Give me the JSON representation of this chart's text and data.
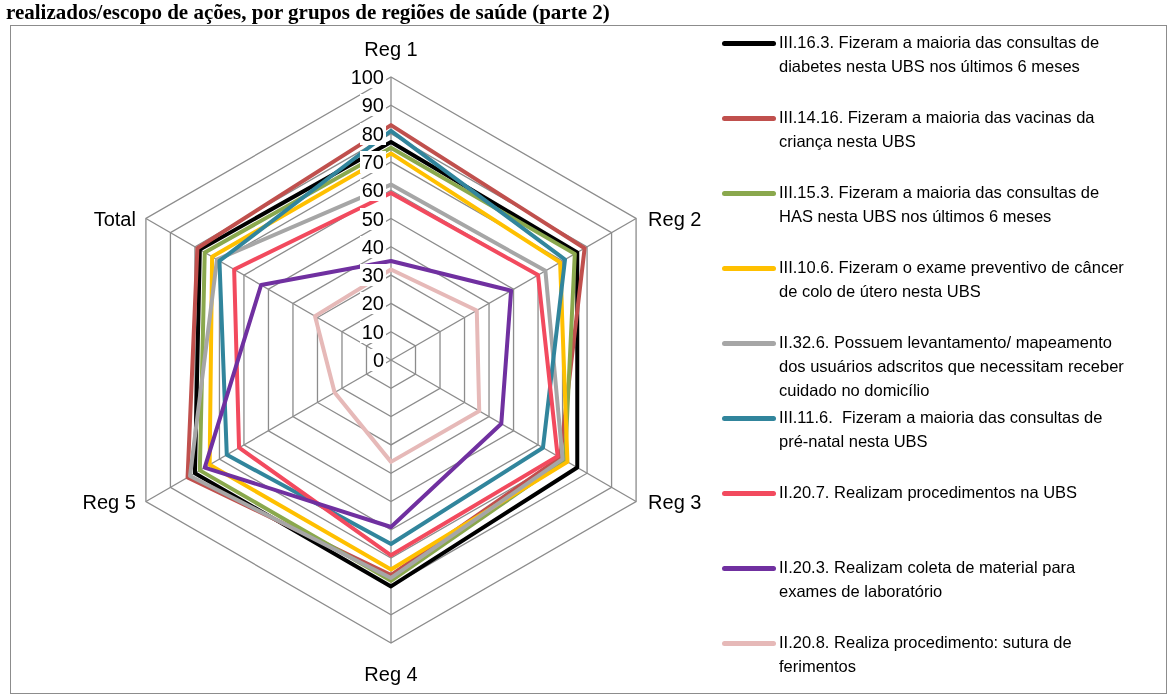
{
  "chart_data": {
    "type": "radar",
    "title": "realizados/escopo de ações, por grupos de regiões de saúde (parte 2)",
    "categories": [
      "Reg 1",
      "Reg 2",
      "Reg 3",
      "Reg 4",
      "Reg 5",
      "Total"
    ],
    "series": [
      {
        "name": "III.16.3. Fizeram a maioria das consultas de diabetes nesta UBS nos últimos 6 meses",
        "color": "#000000",
        "values": [
          77,
          76,
          76,
          80,
          80,
          78
        ]
      },
      {
        "name": "III.14.16. Fizeram a maioria das vacinas da criança nesta UBS",
        "color": "#c0504d",
        "values": [
          83,
          79,
          69,
          76,
          83,
          79
        ]
      },
      {
        "name": "III.15.3. Fizeram a maioria das consultas de HAS nesta UBS nos últimos 6 meses",
        "color": "#8aa84d",
        "values": [
          75,
          75,
          71,
          78,
          78,
          76
        ]
      },
      {
        "name": "III.10.6. Fizeram o exame preventivo de câncer de colo de útero nesta UBS",
        "color": "#ffc000",
        "values": [
          73,
          69,
          72,
          74,
          74,
          73
        ]
      },
      {
        "name": "II.32.6. Possuem levantamento/ mapeamento dos usuários adscritos que necessitam receber cuidado no domicílio",
        "color": "#a6a6a6",
        "values": [
          62,
          63,
          70,
          77,
          82,
          71
        ]
      },
      {
        "name": "III.11.6.  Fizeram a maioria das consultas de pré-natal nesta UBS",
        "color": "#31859c",
        "values": [
          81,
          71,
          62,
          65,
          67,
          70
        ]
      },
      {
        "name": "II.20.7. Realizam procedimentos na UBS",
        "color": "#f24a5e",
        "values": [
          59,
          60,
          68,
          69,
          62,
          64
        ]
      },
      {
        "name": "II.20.3. Realizam coleta de material para exames de laboratório",
        "color": "#7030a0",
        "values": [
          35,
          49,
          45,
          59,
          76,
          53
        ]
      },
      {
        "name": "II.20.8. Realiza procedimento: sutura de ferimentos",
        "color": "#e6b9b8",
        "values": [
          32,
          35,
          36,
          36,
          23,
          31
        ]
      }
    ],
    "ylim": [
      0,
      100
    ],
    "yticks": [
      0,
      10,
      20,
      30,
      40,
      50,
      60,
      70,
      80,
      90,
      100
    ],
    "grid": true,
    "legend": "right",
    "marker": "none",
    "line_style": "solid"
  }
}
